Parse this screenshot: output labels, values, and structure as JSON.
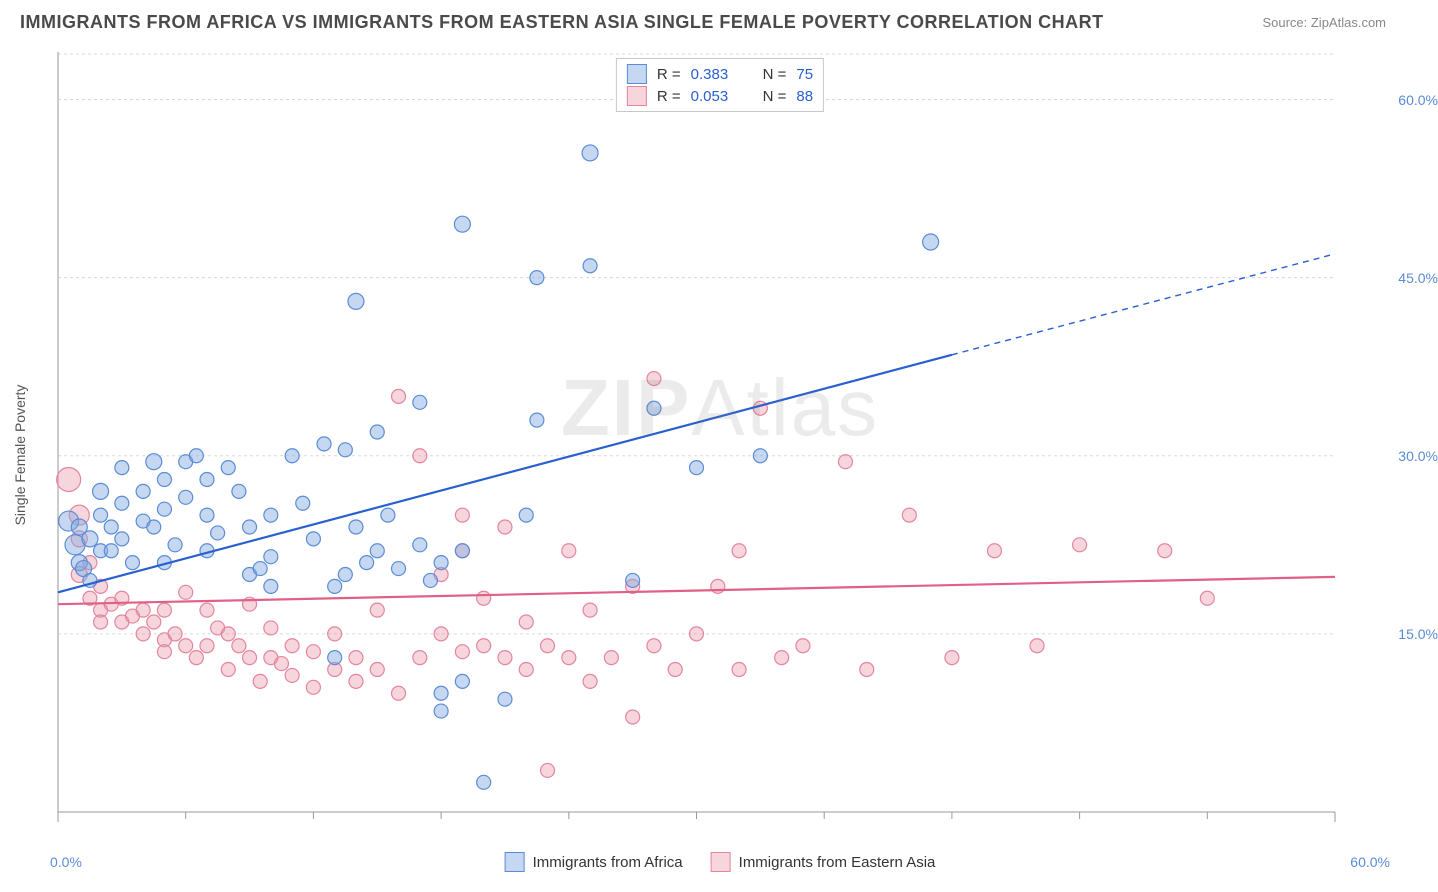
{
  "title": "IMMIGRANTS FROM AFRICA VS IMMIGRANTS FROM EASTERN ASIA SINGLE FEMALE POVERTY CORRELATION CHART",
  "source": "Source: ZipAtlas.com",
  "y_axis_label": "Single Female Poverty",
  "watermark": "ZIPAtlas",
  "chart": {
    "type": "scatter-correlation",
    "xlim": [
      0,
      60
    ],
    "ylim": [
      0,
      64
    ],
    "x_ticks": [
      0,
      60
    ],
    "x_tick_labels": [
      "0.0%",
      "60.0%"
    ],
    "y_ticks": [
      15,
      30,
      45,
      60
    ],
    "y_tick_labels": [
      "15.0%",
      "30.0%",
      "45.0%",
      "60.0%"
    ],
    "minor_x_ticks": [
      6,
      12,
      18,
      24,
      30,
      36,
      42,
      48,
      54
    ],
    "grid_color": "#d8d8d8",
    "grid_dash": "3,3",
    "axis_color": "#999999",
    "background_color": "#ffffff",
    "series": [
      {
        "name": "Immigrants from Africa",
        "color_fill": "rgba(129,168,224,0.45)",
        "color_stroke": "#5b8cd6",
        "line_color": "#2860d0",
        "line_width": 2.2,
        "r": "0.383",
        "n": "75",
        "trend": {
          "x1": 0,
          "y1": 18.5,
          "x2": 42,
          "y2": 38.5,
          "x2_dash": 60,
          "y2_dash": 47.0
        },
        "points": [
          [
            0.5,
            24.5,
            10
          ],
          [
            0.8,
            22.5,
            10
          ],
          [
            1,
            24,
            8
          ],
          [
            1,
            21,
            8
          ],
          [
            1.2,
            20.5,
            8
          ],
          [
            1.5,
            23,
            8
          ],
          [
            1.5,
            19.5,
            7
          ],
          [
            2,
            22,
            7
          ],
          [
            2,
            25,
            7
          ],
          [
            2,
            27,
            8
          ],
          [
            2.5,
            24,
            7
          ],
          [
            2.5,
            22,
            7
          ],
          [
            3,
            23,
            7
          ],
          [
            3,
            26,
            7
          ],
          [
            3,
            29,
            7
          ],
          [
            3.5,
            21,
            7
          ],
          [
            4,
            27,
            7
          ],
          [
            4,
            24.5,
            7
          ],
          [
            4.5,
            29.5,
            8
          ],
          [
            4.5,
            24,
            7
          ],
          [
            5,
            25.5,
            7
          ],
          [
            5,
            28,
            7
          ],
          [
            5,
            21,
            7
          ],
          [
            5.5,
            22.5,
            7
          ],
          [
            6,
            26.5,
            7
          ],
          [
            6,
            29.5,
            7
          ],
          [
            6.5,
            30,
            7
          ],
          [
            7,
            25,
            7
          ],
          [
            7,
            28,
            7
          ],
          [
            7,
            22,
            7
          ],
          [
            7.5,
            23.5,
            7
          ],
          [
            8,
            29,
            7
          ],
          [
            8.5,
            27,
            7
          ],
          [
            9,
            24,
            7
          ],
          [
            9,
            20,
            7
          ],
          [
            9.5,
            20.5,
            7
          ],
          [
            10,
            21.5,
            7
          ],
          [
            10,
            25,
            7
          ],
          [
            10,
            19,
            7
          ],
          [
            11,
            30,
            7
          ],
          [
            11.5,
            26,
            7
          ],
          [
            12,
            23,
            7
          ],
          [
            12.5,
            31,
            7
          ],
          [
            13,
            19,
            7
          ],
          [
            13.5,
            20,
            7
          ],
          [
            13.5,
            30.5,
            7
          ],
          [
            14,
            43,
            8
          ],
          [
            14,
            24,
            7
          ],
          [
            14.5,
            21,
            7
          ],
          [
            15,
            22,
            7
          ],
          [
            15,
            32,
            7
          ],
          [
            15.5,
            25,
            7
          ],
          [
            16,
            20.5,
            7
          ],
          [
            17,
            34.5,
            7
          ],
          [
            17,
            22.5,
            7
          ],
          [
            17.5,
            19.5,
            7
          ],
          [
            18,
            10,
            7
          ],
          [
            18,
            21,
            7
          ],
          [
            18,
            8.5,
            7
          ],
          [
            19,
            11,
            7
          ],
          [
            19,
            49.5,
            8
          ],
          [
            19,
            22,
            7
          ],
          [
            20,
            2.5,
            7
          ],
          [
            21,
            9.5,
            7
          ],
          [
            22,
            25,
            7
          ],
          [
            22.5,
            45,
            7
          ],
          [
            22.5,
            33,
            7
          ],
          [
            25,
            55.5,
            8
          ],
          [
            25,
            46,
            7
          ],
          [
            27,
            19.5,
            7
          ],
          [
            28,
            34,
            7
          ],
          [
            30,
            29,
            7
          ],
          [
            33,
            30,
            7
          ],
          [
            41,
            48,
            8
          ],
          [
            13,
            13,
            7
          ]
        ]
      },
      {
        "name": "Immigrants from Eastern Asia",
        "color_fill": "rgba(235,150,170,0.40)",
        "color_stroke": "#e485a0",
        "line_color": "#e06088",
        "line_width": 2.2,
        "r": "0.053",
        "n": "88",
        "trend": {
          "x1": 0,
          "y1": 17.5,
          "x2": 60,
          "y2": 19.8
        },
        "points": [
          [
            0.5,
            28,
            12
          ],
          [
            1,
            25,
            10
          ],
          [
            1,
            23,
            8
          ],
          [
            1,
            20,
            8
          ],
          [
            1.5,
            21,
            7
          ],
          [
            1.5,
            18,
            7
          ],
          [
            2,
            19,
            7
          ],
          [
            2,
            17,
            7
          ],
          [
            2,
            16,
            7
          ],
          [
            2.5,
            17.5,
            7
          ],
          [
            3,
            16,
            7
          ],
          [
            3,
            18,
            7
          ],
          [
            3.5,
            16.5,
            7
          ],
          [
            4,
            17,
            7
          ],
          [
            4,
            15,
            7
          ],
          [
            4.5,
            16,
            7
          ],
          [
            5,
            14.5,
            7
          ],
          [
            5,
            17,
            7
          ],
          [
            5,
            13.5,
            7
          ],
          [
            5.5,
            15,
            7
          ],
          [
            6,
            14,
            7
          ],
          [
            6,
            18.5,
            7
          ],
          [
            6.5,
            13,
            7
          ],
          [
            7,
            14,
            7
          ],
          [
            7,
            17,
            7
          ],
          [
            7.5,
            15.5,
            7
          ],
          [
            8,
            12,
            7
          ],
          [
            8,
            15,
            7
          ],
          [
            8.5,
            14,
            7
          ],
          [
            9,
            13,
            7
          ],
          [
            9,
            17.5,
            7
          ],
          [
            9.5,
            11,
            7
          ],
          [
            10,
            13,
            7
          ],
          [
            10,
            15.5,
            7
          ],
          [
            10.5,
            12.5,
            7
          ],
          [
            11,
            14,
            7
          ],
          [
            11,
            11.5,
            7
          ],
          [
            12,
            10.5,
            7
          ],
          [
            12,
            13.5,
            7
          ],
          [
            13,
            12,
            7
          ],
          [
            13,
            15,
            7
          ],
          [
            14,
            11,
            7
          ],
          [
            14,
            13,
            7
          ],
          [
            15,
            17,
            7
          ],
          [
            15,
            12,
            7
          ],
          [
            16,
            10,
            7
          ],
          [
            16,
            35,
            7
          ],
          [
            17,
            13,
            7
          ],
          [
            17,
            30,
            7
          ],
          [
            18,
            15,
            7
          ],
          [
            18,
            20,
            7
          ],
          [
            19,
            13.5,
            7
          ],
          [
            19,
            22,
            7
          ],
          [
            19,
            25,
            7
          ],
          [
            20,
            14,
            7
          ],
          [
            20,
            18,
            7
          ],
          [
            21,
            13,
            7
          ],
          [
            21,
            24,
            7
          ],
          [
            22,
            12,
            7
          ],
          [
            22,
            16,
            7
          ],
          [
            23,
            3.5,
            7
          ],
          [
            23,
            14,
            7
          ],
          [
            24,
            13,
            7
          ],
          [
            24,
            22,
            7
          ],
          [
            25,
            11,
            7
          ],
          [
            25,
            17,
            7
          ],
          [
            26,
            13,
            7
          ],
          [
            27,
            8,
            7
          ],
          [
            27,
            19,
            7
          ],
          [
            28,
            14,
            7
          ],
          [
            28,
            36.5,
            7
          ],
          [
            29,
            12,
            7
          ],
          [
            30,
            15,
            7
          ],
          [
            31,
            19,
            7
          ],
          [
            32,
            12,
            7
          ],
          [
            32,
            22,
            7
          ],
          [
            33,
            34,
            7
          ],
          [
            34,
            13,
            7
          ],
          [
            35,
            14,
            7
          ],
          [
            37,
            29.5,
            7
          ],
          [
            38,
            12,
            7
          ],
          [
            40,
            25,
            7
          ],
          [
            42,
            13,
            7
          ],
          [
            44,
            22,
            7
          ],
          [
            46,
            14,
            7
          ],
          [
            48,
            22.5,
            7
          ],
          [
            52,
            22,
            7
          ],
          [
            54,
            18,
            7
          ]
        ]
      }
    ],
    "legend_bottom": [
      {
        "label": "Immigrants from Africa",
        "fill": "rgba(129,168,224,0.45)",
        "stroke": "#5b8cd6"
      },
      {
        "label": "Immigrants from Eastern Asia",
        "fill": "rgba(235,150,170,0.40)",
        "stroke": "#e485a0"
      }
    ]
  }
}
